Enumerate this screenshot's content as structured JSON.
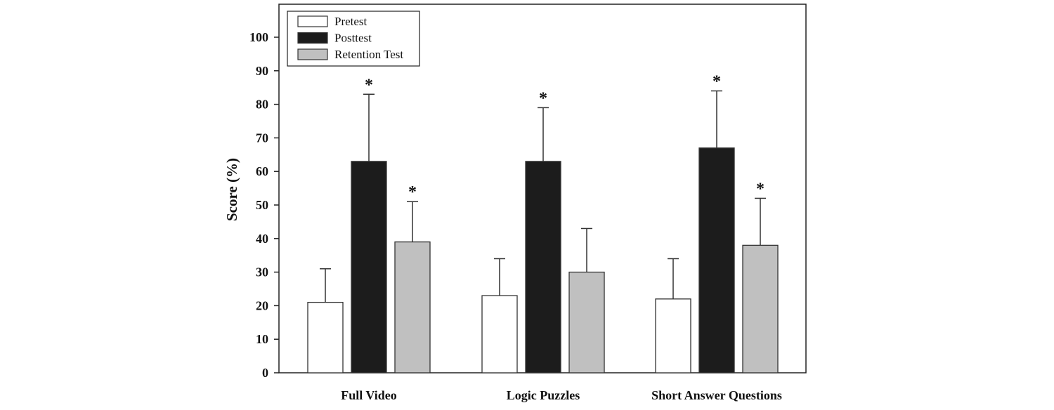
{
  "chart_data": {
    "type": "bar",
    "title": "",
    "xlabel": "",
    "ylabel": "Score (%)",
    "ylim": [
      0,
      100
    ],
    "yticks": [
      0,
      10,
      20,
      30,
      40,
      50,
      60,
      70,
      80,
      90,
      100
    ],
    "grid": false,
    "legend_position": "top-left",
    "categories": [
      "Full Video",
      "Logic Puzzles",
      "Short Answer Questions"
    ],
    "series": [
      {
        "name": "Pretest",
        "color": "#ffffff",
        "values": [
          21,
          23,
          22
        ],
        "error": [
          10,
          11,
          12
        ],
        "significant": [
          false,
          false,
          false
        ]
      },
      {
        "name": "Posttest",
        "color": "#1c1c1c",
        "values": [
          63,
          63,
          67
        ],
        "error": [
          20,
          16,
          17
        ],
        "significant": [
          true,
          true,
          true
        ]
      },
      {
        "name": "Retention Test",
        "color": "#c0c0c0",
        "values": [
          39,
          30,
          38
        ],
        "error": [
          12,
          13,
          14
        ],
        "significant": [
          true,
          false,
          true
        ]
      }
    ],
    "significance_marker": "*"
  }
}
